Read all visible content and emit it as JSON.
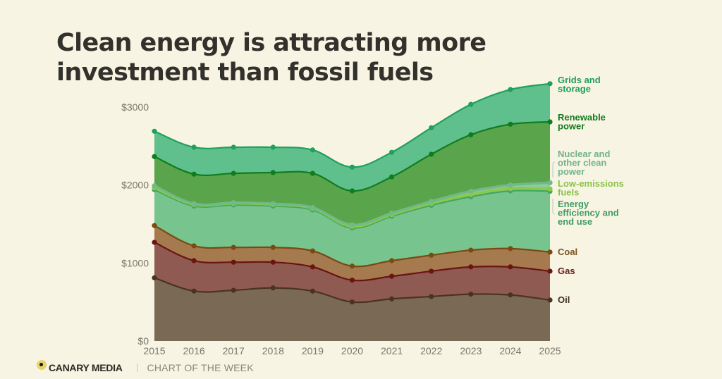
{
  "title": {
    "line1": "Clean energy is attracting more",
    "line2": "investment than fossil fuels"
  },
  "footer": {
    "brand": "CANARY MEDIA",
    "tagline": "CHART OF THE WEEK",
    "logo_icon": "canary-dot-icon"
  },
  "chart_data": {
    "type": "area",
    "stacked": true,
    "title": "Clean energy is attracting more investment than fossil fuels",
    "xlabel": "",
    "ylabel": "",
    "x": [
      2015,
      2016,
      2017,
      2018,
      2019,
      2020,
      2021,
      2022,
      2023,
      2024,
      2025
    ],
    "x_tick_labels": [
      "2015",
      "2016",
      "2017",
      "2018",
      "2019",
      "2020",
      "2021",
      "2022",
      "2023",
      "2024",
      "2025"
    ],
    "y_ticks": [
      0,
      1000,
      2000,
      3000
    ],
    "y_tick_labels": [
      "$0",
      "$1000",
      "$2000",
      "$3000"
    ],
    "ylim": [
      0,
      3000
    ],
    "grid": false,
    "legend": "right (direct labels at line ends)",
    "series": [
      {
        "name": "Oil",
        "label": "Oil",
        "color": "#7a6a55",
        "line": "#4a3320",
        "values": [
          810,
          640,
          650,
          680,
          640,
          500,
          540,
          570,
          600,
          590,
          525
        ]
      },
      {
        "name": "Gas",
        "label": "Gas",
        "color": "#8f5a52",
        "line": "#6a1414",
        "values": [
          455,
          390,
          360,
          330,
          310,
          280,
          290,
          325,
          350,
          360,
          370
        ]
      },
      {
        "name": "Coal",
        "label": "Coal",
        "color": "#a57a4e",
        "line": "#7a4a12",
        "values": [
          215,
          190,
          190,
          190,
          205,
          180,
          200,
          205,
          215,
          235,
          245
        ]
      },
      {
        "name": "Energy efficiency and end use",
        "label": "Energy\nefficiency and\nend use",
        "color": "#78c48e",
        "line": "#3fa860",
        "values": [
          460,
          510,
          545,
          530,
          525,
          490,
          570,
          640,
          685,
          740,
          780
        ]
      },
      {
        "name": "Low-emissions fuels",
        "label": "Low-emissions\nfuels",
        "color": "#9ccf72",
        "line": "#8cc84b",
        "values": [
          25,
          20,
          20,
          20,
          20,
          20,
          20,
          25,
          30,
          30,
          30
        ]
      },
      {
        "name": "Nuclear and other clean power",
        "label": "Nuclear and\nother clean\npower",
        "color": "#8fcba0",
        "line": "#72b98a",
        "values": [
          25,
          10,
          10,
          10,
          10,
          20,
          20,
          25,
          40,
          45,
          80
        ]
      },
      {
        "name": "Renewable power",
        "label": "Renewable\npower",
        "color": "#5aa44b",
        "line": "#0f7d1e",
        "values": [
          375,
          380,
          375,
          400,
          440,
          435,
          465,
          605,
          725,
          780,
          780
        ]
      },
      {
        "name": "Grids and storage",
        "label": "Grids and\nstorage",
        "color": "#5fc08e",
        "line": "#1ea05e",
        "values": [
          325,
          345,
          335,
          325,
          300,
          305,
          315,
          340,
          390,
          445,
          490
        ]
      }
    ],
    "label_colors": {
      "Oil": "#3d3226",
      "Gas": "#6b1f1f",
      "Coal": "#7a5522",
      "Energy efficiency and end use": "#3f9c62",
      "Low-emissions fuels": "#8cc24a",
      "Nuclear and other clean power": "#6fb38c",
      "Renewable power": "#137a1f",
      "Grids and storage": "#1f9d5e"
    }
  }
}
